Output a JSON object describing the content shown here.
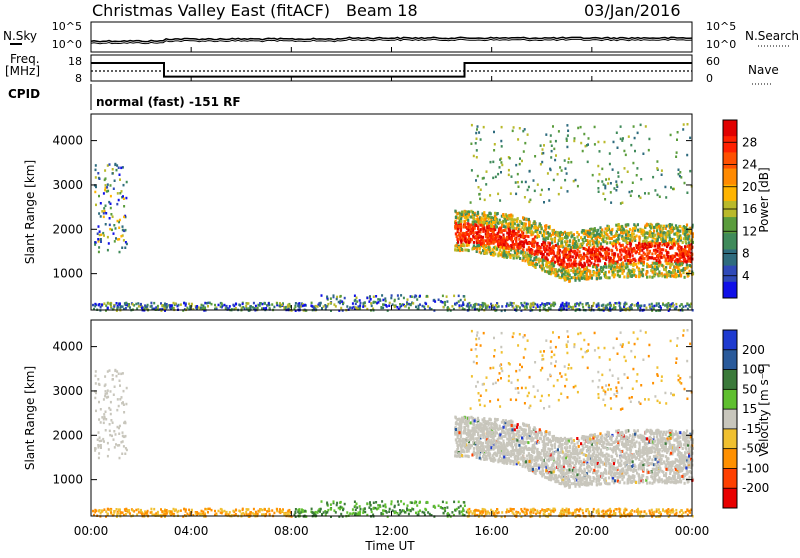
{
  "header": {
    "station": "Christmas Valley East (fitACF)",
    "beam": "Beam 18",
    "date": "03/Jan/2016"
  },
  "noise_panel": {
    "left_label": "N.Sky",
    "left_ticks": [
      "10^5",
      "10^0"
    ],
    "right_label": "N.Search",
    "right_ticks": [
      "10^5",
      "10^0"
    ]
  },
  "freq_panel": {
    "left_label_1": "Freq.",
    "left_label_2": "[MHz]",
    "left_ticks": [
      "18",
      "8"
    ],
    "right_label": "Nave",
    "right_ticks": [
      "60",
      "0"
    ]
  },
  "cpid": {
    "label": "CPID",
    "text": "normal (fast) -151 RF"
  },
  "power_panel": {
    "ylabel": "Slant Range [km]",
    "yticks": [
      "4000",
      "3000",
      "2000",
      "1000"
    ],
    "colorbar_label": "Power [dB]",
    "colorbar_ticks": [
      "28",
      "24",
      "20",
      "16",
      "12",
      "8",
      "4"
    ],
    "colors": [
      "#1010e8",
      "#2f49b8",
      "#2e6b7e",
      "#3f8a5a",
      "#5a9c3c",
      "#b9b92a",
      "#ffb400",
      "#ff8a00",
      "#ff5000",
      "#ff2000",
      "#e00000"
    ]
  },
  "velocity_panel": {
    "ylabel": "Slant Range [km]",
    "yticks": [
      "4000",
      "3000",
      "2000",
      "1000"
    ],
    "colorbar_label": "Velocity [m s⁻¹]",
    "colorbar_ticks": [
      "200",
      "100",
      "50",
      "15",
      "-15",
      "-50",
      "-100",
      "-200"
    ],
    "colors": [
      "#1f3bd0",
      "#2a5a9a",
      "#3b7a3a",
      "#5fbf2f",
      "#c8c6bc",
      "#f0c030",
      "#ff9000",
      "#ff4000",
      "#e80000"
    ]
  },
  "xaxis": {
    "label": "Time UT",
    "ticks": [
      "00:00",
      "04:00",
      "08:00",
      "12:00",
      "16:00",
      "20:00",
      "00:00"
    ]
  },
  "chart_data": {
    "type": "heatmap",
    "x_range_hours": [
      0,
      24
    ],
    "y_range_km": [
      180,
      4600
    ],
    "frequency_mhz": [
      {
        "start": "00:00",
        "end": "02:55",
        "value": 18
      },
      {
        "start": "02:55",
        "end": "14:55",
        "value": 10
      },
      {
        "start": "14:55",
        "end": "24:00",
        "value": 18
      }
    ],
    "nave": 20,
    "power_scatter_band": [
      {
        "x": 15.0,
        "y_low": 1700,
        "y_high": 2200,
        "power_db": 24
      },
      {
        "x": 17.0,
        "y_low": 1500,
        "y_high": 2100,
        "power_db": 28
      },
      {
        "x": 19.0,
        "y_low": 1000,
        "y_high": 1700,
        "power_db": 28
      },
      {
        "x": 21.0,
        "y_low": 1100,
        "y_high": 1900,
        "power_db": 26
      },
      {
        "x": 23.5,
        "y_low": 1100,
        "y_high": 1900,
        "power_db": 26
      }
    ]
  }
}
